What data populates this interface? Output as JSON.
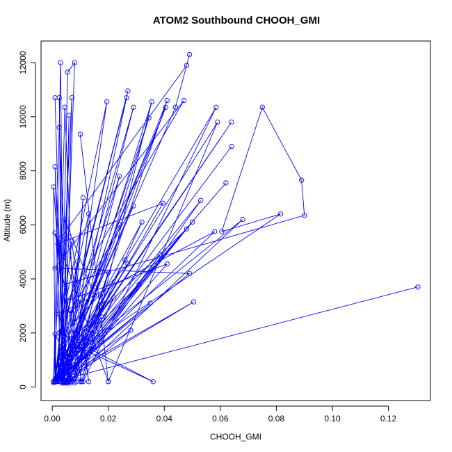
{
  "chart_data": {
    "type": "line",
    "title": "ATOM2 Southbound CHOOH_GMI",
    "xlabel": "CHOOH_GMI",
    "ylabel": "Altitude (m)",
    "xlim": [
      -0.004,
      0.135
    ],
    "ylim": [
      -500,
      12800
    ],
    "xticks": [
      0.0,
      0.02,
      0.04,
      0.06,
      0.08,
      0.1,
      0.12
    ],
    "xtick_labels": [
      "0.00",
      "0.02",
      "0.04",
      "0.06",
      "0.08",
      "0.10",
      "0.12"
    ],
    "yticks": [
      0,
      2000,
      4000,
      6000,
      8000,
      10000,
      12000
    ],
    "ytick_labels": [
      "0",
      "2000",
      "4000",
      "6000",
      "8000",
      "10000",
      "12000"
    ],
    "grid": false,
    "series": [
      {
        "color": "#0000ff",
        "marker": "open-circle",
        "x": [
          0.0005,
          0.003,
          0.004,
          0.001,
          0.004,
          0.0025,
          0.0035,
          0.006,
          0.004,
          0.008,
          0.0055,
          0.003,
          0.001,
          0.0045,
          0.007,
          0.002,
          0.0045,
          0.0085,
          0.013,
          0.0005,
          0.0025,
          0.0065,
          0.011,
          0.0055,
          0.0005,
          0.001,
          0.007,
          0.013,
          0.0045,
          0.015,
          0.008,
          0.022,
          0.005,
          0.0175,
          0.0015,
          0.019,
          0.005,
          0.024,
          0.001,
          0.0105,
          0.0055,
          0.028,
          0.0015,
          0.035,
          0.0005,
          0.003,
          0.048,
          0.049,
          0.044,
          0.0015,
          0.001,
          0.01,
          0.011,
          0.036,
          0.0025,
          0.0195,
          0.005,
          0.0265,
          0.0005,
          0.027,
          0.001,
          0.029,
          0.004,
          0.0355,
          0.011,
          0.0585,
          0.0005,
          0.024,
          0.001,
          0.002,
          0.0395,
          0.003,
          0.0345,
          0.006,
          0.032,
          0.001,
          0.041,
          0.007,
          0.053,
          0.001,
          0.059,
          0.02,
          0.01,
          0.02,
          0.001,
          0.0105,
          0.02,
          0.007,
          0.0025,
          0.058,
          0.0015,
          0.017,
          0.001,
          0.064,
          0.001,
          0.064,
          0.0005,
          0.062,
          0.0005,
          0.0085,
          0.002,
          0.05,
          0.003,
          0.0505,
          0.001,
          0.1305,
          0.001,
          0.0045,
          0.09,
          0.089,
          0.075,
          0.0605,
          0.0815,
          0.0095,
          0.068,
          0.007,
          0.0385,
          0.006,
          0.048,
          0.007,
          0.0405,
          0.0045,
          0.026,
          0.008,
          0.031,
          0.002,
          0.027,
          0.008,
          0.015,
          0.006,
          0.029,
          0.002,
          0.049,
          0.001,
          0.047,
          0.0055,
          0.041,
          0.0045,
          0.009,
          0.001
        ],
        "y": [
          150,
          12000,
          150,
          10700,
          150,
          10700,
          150,
          10050,
          200,
          12000,
          11650,
          200,
          8150,
          200,
          10700,
          200,
          10350,
          200,
          6400,
          200,
          9600,
          150,
          7000,
          200,
          7400,
          200,
          5400,
          200,
          6200,
          3400,
          150,
          3300,
          150,
          2600,
          200,
          3100,
          150,
          7800,
          200,
          2600,
          150,
          2100,
          200,
          3100,
          200,
          5500,
          11900,
          12300,
          10350,
          200,
          1950,
          200,
          1400,
          200,
          2000,
          10550,
          200,
          10700,
          200,
          10950,
          200,
          10350,
          200,
          10550,
          200,
          10350,
          200,
          6000,
          200,
          5300,
          6800,
          200,
          9950,
          200,
          6100,
          200,
          10600,
          200,
          6900,
          200,
          9800,
          200,
          9350,
          200,
          5700,
          200,
          4250,
          200,
          2700,
          5750,
          200,
          1700,
          200,
          8900,
          200,
          9800,
          200,
          7550,
          200,
          1950,
          200,
          6100,
          200,
          3150,
          200,
          3700,
          200,
          3800,
          6350,
          7650,
          10350,
          5750,
          6400,
          1350,
          6200,
          300,
          4900,
          400,
          5850,
          1800,
          10350,
          600,
          4700,
          1400,
          3800,
          200,
          4550,
          2400,
          3700,
          2700,
          6700,
          250,
          4200,
          4400,
          10600,
          3200,
          4550,
          250,
          4650,
          300
        ]
      }
    ]
  }
}
